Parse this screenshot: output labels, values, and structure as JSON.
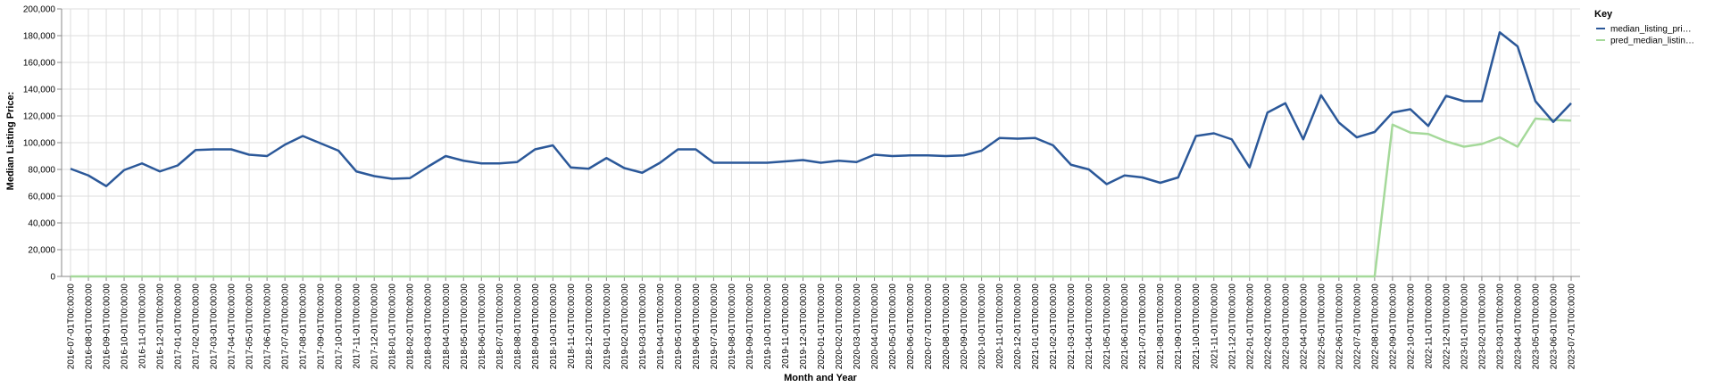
{
  "chart_data": {
    "type": "line",
    "xlabel": "Month and Year",
    "ylabel": "Median Listing Price:",
    "ylim": [
      0,
      200000
    ],
    "yticks": [
      "0",
      "20,000",
      "40,000",
      "60,000",
      "80,000",
      "100,000",
      "120,000",
      "140,000",
      "160,000",
      "180,000",
      "200,000"
    ],
    "grid": true,
    "legend": {
      "title": "Key",
      "placement": "top-right",
      "entries": [
        "median_listing_pri…",
        "pred_median_listin…"
      ]
    },
    "x": [
      "2016-07-01T00:00:00",
      "2016-08-01T00:00:00",
      "2016-09-01T00:00:00",
      "2016-10-01T00:00:00",
      "2016-11-01T00:00:00",
      "2016-12-01T00:00:00",
      "2017-01-01T00:00:00",
      "2017-02-01T00:00:00",
      "2017-03-01T00:00:00",
      "2017-04-01T00:00:00",
      "2017-05-01T00:00:00",
      "2017-06-01T00:00:00",
      "2017-07-01T00:00:00",
      "2017-08-01T00:00:00",
      "2017-09-01T00:00:00",
      "2017-10-01T00:00:00",
      "2017-11-01T00:00:00",
      "2017-12-01T00:00:00",
      "2018-01-01T00:00:00",
      "2018-02-01T00:00:00",
      "2018-03-01T00:00:00",
      "2018-04-01T00:00:00",
      "2018-05-01T00:00:00",
      "2018-06-01T00:00:00",
      "2018-07-01T00:00:00",
      "2018-08-01T00:00:00",
      "2018-09-01T00:00:00",
      "2018-10-01T00:00:00",
      "2018-11-01T00:00:00",
      "2018-12-01T00:00:00",
      "2019-01-01T00:00:00",
      "2019-02-01T00:00:00",
      "2019-03-01T00:00:00",
      "2019-04-01T00:00:00",
      "2019-05-01T00:00:00",
      "2019-06-01T00:00:00",
      "2019-07-01T00:00:00",
      "2019-08-01T00:00:00",
      "2019-09-01T00:00:00",
      "2019-10-01T00:00:00",
      "2019-11-01T00:00:00",
      "2019-12-01T00:00:00",
      "2020-01-01T00:00:00",
      "2020-02-01T00:00:00",
      "2020-03-01T00:00:00",
      "2020-04-01T00:00:00",
      "2020-05-01T00:00:00",
      "2020-06-01T00:00:00",
      "2020-07-01T00:00:00",
      "2020-08-01T00:00:00",
      "2020-09-01T00:00:00",
      "2020-10-01T00:00:00",
      "2020-11-01T00:00:00",
      "2020-12-01T00:00:00",
      "2021-01-01T00:00:00",
      "2021-02-01T00:00:00",
      "2021-03-01T00:00:00",
      "2021-04-01T00:00:00",
      "2021-05-01T00:00:00",
      "2021-06-01T00:00:00",
      "2021-07-01T00:00:00",
      "2021-08-01T00:00:00",
      "2021-09-01T00:00:00",
      "2021-10-01T00:00:00",
      "2021-11-01T00:00:00",
      "2021-12-01T00:00:00",
      "2022-01-01T00:00:00",
      "2022-02-01T00:00:00",
      "2022-03-01T00:00:00",
      "2022-04-01T00:00:00",
      "2022-05-01T00:00:00",
      "2022-06-01T00:00:00",
      "2022-07-01T00:00:00",
      "2022-08-01T00:00:00",
      "2022-09-01T00:00:00",
      "2022-10-01T00:00:00",
      "2022-11-01T00:00:00",
      "2022-12-01T00:00:00",
      "2023-01-01T00:00:00",
      "2023-02-01T00:00:00",
      "2023-03-01T00:00:00",
      "2023-04-01T00:00:00",
      "2023-05-01T00:00:00",
      "2023-06-01T00:00:00",
      "2023-07-01T00:00:00"
    ],
    "series": [
      {
        "name": "median_listing_pri…",
        "color": "#2b5899",
        "values": [
          80500,
          75500,
          67500,
          79500,
          84500,
          78500,
          83000,
          94500,
          95000,
          95000,
          91000,
          90000,
          98500,
          105000,
          99500,
          94000,
          78500,
          75000,
          73000,
          73500,
          82000,
          90000,
          86500,
          84500,
          84500,
          85500,
          95000,
          98000,
          81500,
          80500,
          88500,
          81000,
          77500,
          85000,
          95000,
          95000,
          85000,
          85000,
          85000,
          85000,
          86000,
          87000,
          85000,
          86500,
          85500,
          91000,
          90000,
          90500,
          90500,
          90000,
          90500,
          94000,
          103500,
          103000,
          103500,
          98000,
          83500,
          80000,
          69000,
          75500,
          74000,
          70000,
          74000,
          105000,
          107000,
          102500,
          81500,
          122500,
          129500,
          102500,
          135500,
          115000,
          104000,
          108000,
          122500,
          125000,
          112500,
          135000,
          131000,
          131000,
          182500,
          172000,
          131000,
          115500,
          129500
        ]
      },
      {
        "name": "pred_median_listin…",
        "color": "#a5d99a",
        "values": [
          0,
          0,
          0,
          0,
          0,
          0,
          0,
          0,
          0,
          0,
          0,
          0,
          0,
          0,
          0,
          0,
          0,
          0,
          0,
          0,
          0,
          0,
          0,
          0,
          0,
          0,
          0,
          0,
          0,
          0,
          0,
          0,
          0,
          0,
          0,
          0,
          0,
          0,
          0,
          0,
          0,
          0,
          0,
          0,
          0,
          0,
          0,
          0,
          0,
          0,
          0,
          0,
          0,
          0,
          0,
          0,
          0,
          0,
          0,
          0,
          0,
          0,
          0,
          0,
          0,
          0,
          0,
          0,
          0,
          0,
          0,
          0,
          0,
          0,
          113500,
          107500,
          106500,
          101000,
          97000,
          99000,
          104000,
          97000,
          118000,
          117000,
          116500
        ]
      }
    ]
  }
}
